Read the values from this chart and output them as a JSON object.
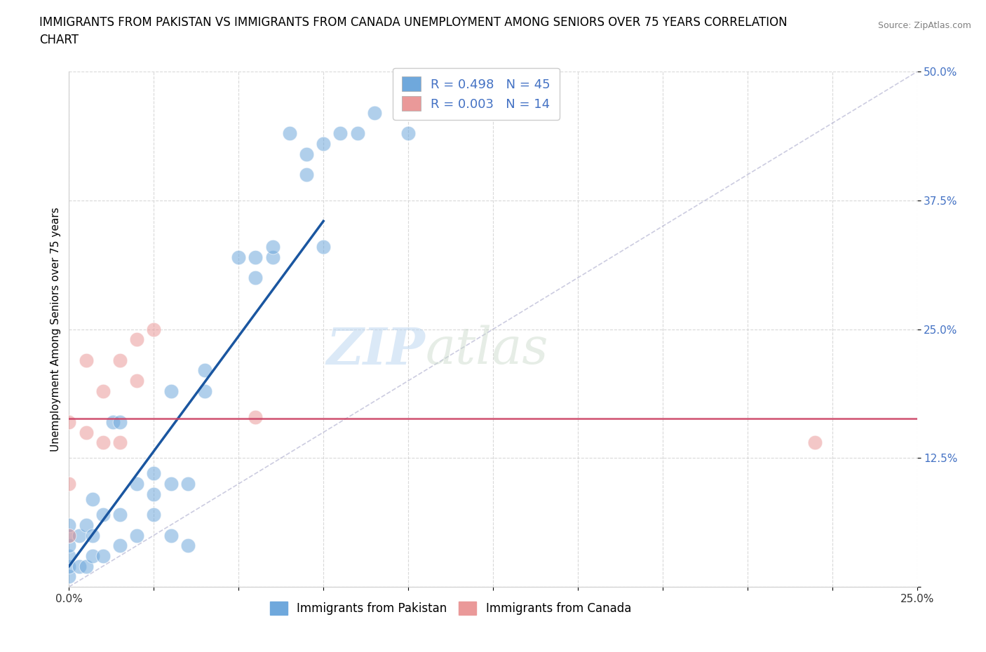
{
  "title_line1": "IMMIGRANTS FROM PAKISTAN VS IMMIGRANTS FROM CANADA UNEMPLOYMENT AMONG SENIORS OVER 75 YEARS CORRELATION",
  "title_line2": "CHART",
  "source": "Source: ZipAtlas.com",
  "ylabel": "Unemployment Among Seniors over 75 years",
  "xlim": [
    0.0,
    0.25
  ],
  "ylim": [
    0.0,
    0.5
  ],
  "xticks": [
    0.0,
    0.025,
    0.05,
    0.075,
    0.1,
    0.125,
    0.15,
    0.175,
    0.2,
    0.225,
    0.25
  ],
  "xticklabels_show": {
    "0.0": "0.0%",
    "0.25": "25.0%"
  },
  "yticks": [
    0.0,
    0.125,
    0.25,
    0.375,
    0.5
  ],
  "yticklabels": [
    "",
    "12.5%",
    "25.0%",
    "37.5%",
    "50.0%"
  ],
  "pakistan_color": "#6fa8dc",
  "canada_color": "#ea9999",
  "pakistan_R": 0.498,
  "pakistan_N": 45,
  "canada_R": 0.003,
  "canada_N": 14,
  "pakistan_scatter_x": [
    0.0,
    0.0,
    0.0,
    0.0,
    0.0,
    0.0,
    0.003,
    0.003,
    0.005,
    0.005,
    0.007,
    0.007,
    0.007,
    0.01,
    0.01,
    0.013,
    0.015,
    0.015,
    0.015,
    0.02,
    0.02,
    0.025,
    0.025,
    0.025,
    0.03,
    0.03,
    0.03,
    0.035,
    0.035,
    0.04,
    0.04,
    0.05,
    0.055,
    0.055,
    0.06,
    0.06,
    0.065,
    0.07,
    0.07,
    0.075,
    0.075,
    0.08,
    0.085,
    0.09,
    0.1
  ],
  "pakistan_scatter_y": [
    0.01,
    0.02,
    0.03,
    0.04,
    0.05,
    0.06,
    0.02,
    0.05,
    0.02,
    0.06,
    0.03,
    0.05,
    0.085,
    0.03,
    0.07,
    0.16,
    0.04,
    0.07,
    0.16,
    0.05,
    0.1,
    0.07,
    0.09,
    0.11,
    0.05,
    0.1,
    0.19,
    0.04,
    0.1,
    0.19,
    0.21,
    0.32,
    0.3,
    0.32,
    0.32,
    0.33,
    0.44,
    0.4,
    0.42,
    0.33,
    0.43,
    0.44,
    0.44,
    0.46,
    0.44
  ],
  "canada_scatter_x": [
    0.0,
    0.0,
    0.0,
    0.005,
    0.005,
    0.01,
    0.01,
    0.015,
    0.015,
    0.02,
    0.02,
    0.025,
    0.055,
    0.22
  ],
  "canada_scatter_y": [
    0.05,
    0.1,
    0.16,
    0.15,
    0.22,
    0.14,
    0.19,
    0.14,
    0.22,
    0.2,
    0.24,
    0.25,
    0.165,
    0.14
  ],
  "pakistan_trend_x": [
    0.0,
    0.075
  ],
  "pakistan_trend_y": [
    0.02,
    0.355
  ],
  "canada_trend_y": 0.163,
  "ref_line_x": [
    0.0,
    0.25
  ],
  "ref_line_y": [
    0.0,
    0.5
  ],
  "watermark_zip": "ZIP",
  "watermark_atlas": "atlas",
  "background_color": "#ffffff",
  "grid_color": "#d0d0d0",
  "title_fontsize": 12,
  "axis_label_fontsize": 11,
  "tick_fontsize": 11,
  "legend_label_pakistan": "Immigrants from Pakistan",
  "legend_label_canada": "Immigrants from Canada",
  "legend_R_color": "#4472c4",
  "tick_color_y": "#4472c4",
  "tick_color_x": "#333333"
}
